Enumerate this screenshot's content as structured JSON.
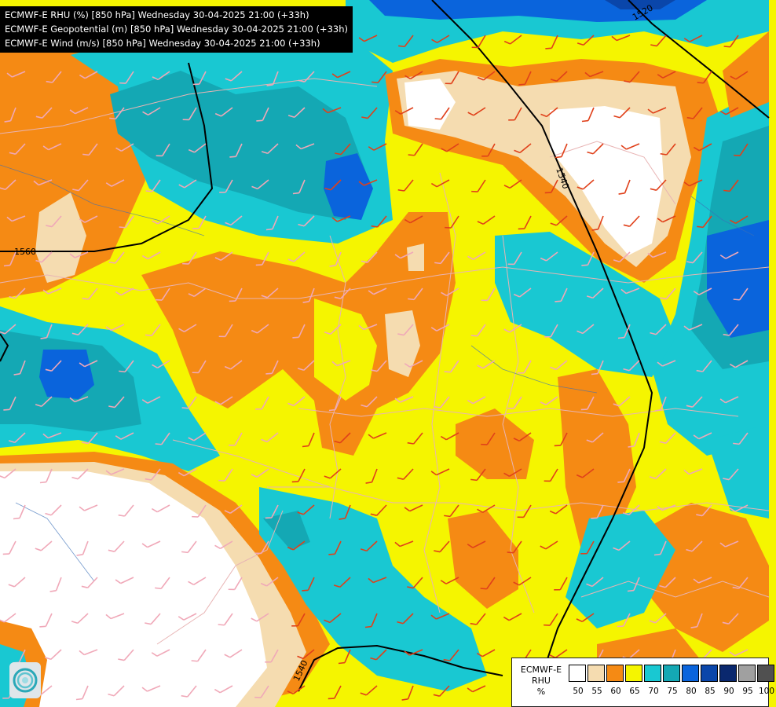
{
  "title_lines": [
    "ECMWF-E RHU (%) [850 hPa] Wednesday 30-04-2025 21:00 (+33h)",
    "ECMWF-E Geopotential (m) [850 hPa] Wednesday 30-04-2025 21:00 (+33h)",
    "ECMWF-E Wind (m/s) [850 hPa] Wednesday 30-04-2025 21:00 (+33h)"
  ],
  "legend": {
    "model": "ECMWF-E",
    "variable": "RHU",
    "unit": "%",
    "levels": [
      "50",
      "55",
      "60",
      "65",
      "70",
      "75",
      "80",
      "85",
      "90",
      "95",
      "100"
    ],
    "colors": [
      "#ffffff",
      "#f5dcb0",
      "#f58a14",
      "#f5f500",
      "#19c8d2",
      "#14a8b4",
      "#0a64dc",
      "#0a46aa",
      "#0a286e",
      "#a0a0a0",
      "#505050"
    ]
  },
  "contour_labels": [
    "1520",
    "1540",
    "1560",
    "1540"
  ],
  "colors": {
    "white": "#ffffff",
    "tan": "#f5dcb0",
    "orange": "#f58a14",
    "yellow": "#f5f500",
    "cyan": "#19c8d2",
    "teal": "#14a8b4",
    "blue": "#0a64dc",
    "navy": "#0a46aa"
  },
  "logo_icon": "ecmwf-logo-icon"
}
